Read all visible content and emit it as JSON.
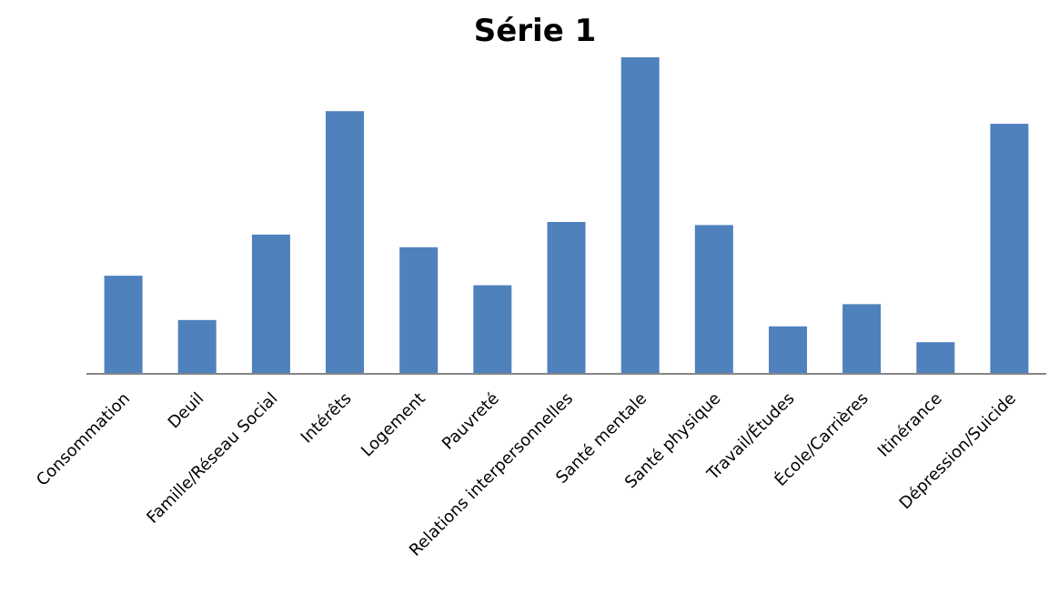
{
  "chart_data": {
    "type": "bar",
    "title": "Série 1",
    "xlabel": "",
    "ylabel": "",
    "categories": [
      "Consommation",
      "Deuil",
      "Famille/Réseau Social",
      "Intérêts",
      "Logement",
      "Pauvreté",
      "Relations interpersonnelles",
      "Santé mentale",
      "Santé physique",
      "Travail/Études",
      "École/Carrières",
      "Itinérance",
      "Dépression/Suicide"
    ],
    "series": [
      {
        "values": [
          31,
          17,
          44,
          83,
          40,
          28,
          48,
          100,
          47,
          15,
          22,
          10,
          79
        ]
      }
    ],
    "ylim": [
      0,
      100
    ],
    "grid": false,
    "legend": "none",
    "bar_color": "#4F81BD",
    "axis_color": "#868686"
  }
}
